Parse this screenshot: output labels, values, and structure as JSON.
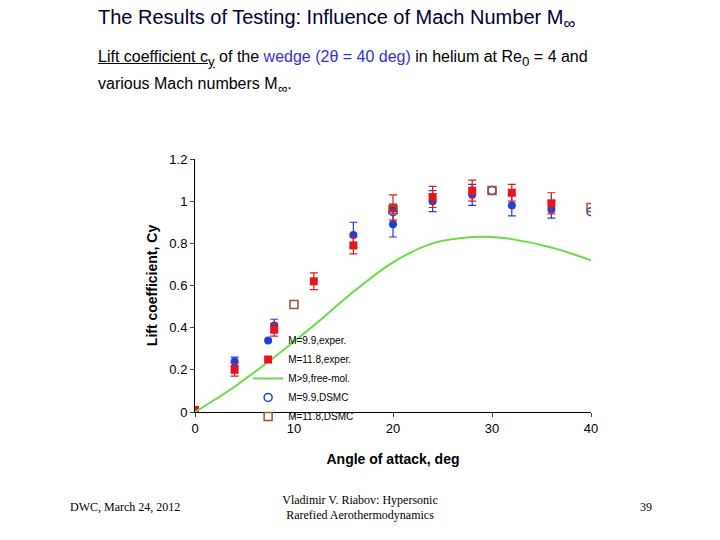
{
  "slide": {
    "title": [
      {
        "text": "The Results of Testing: Influence of Mach Number M"
      },
      {
        "text": "∞",
        "sub": true
      }
    ],
    "subtitle": [
      {
        "text": "Lift coefficient c",
        "underline": true
      },
      {
        "text": "y",
        "sub": true,
        "underline": true
      },
      {
        "text": " of the "
      },
      {
        "text": "wedge (2θ = 40 deg)",
        "color": "#3333cc"
      },
      {
        "text": " in helium at Re"
      },
      {
        "text": "0",
        "sub": true
      },
      {
        "text": " = 4 and various Mach numbers M"
      },
      {
        "text": "∞",
        "sub": true
      },
      {
        "text": "."
      }
    ],
    "footer_left": "DWC, March 24, 2012",
    "footer_center": [
      "Vladimir V. Riabov: Hypersonic",
      "Rarefied Aerothermodynamics"
    ],
    "footer_right": "39"
  },
  "chart_data": {
    "type": "scatter",
    "x_label": "Angle of attack, deg",
    "y_label": "Lift coefficient, Cy",
    "xlim": [
      0,
      40
    ],
    "xticks": [
      0,
      10,
      20,
      30,
      40
    ],
    "ylim": [
      0,
      1.2
    ],
    "yticks": [
      0,
      0.2,
      0.4,
      0.6,
      0.8,
      1,
      1.2
    ],
    "grid": false,
    "legend": "lower right",
    "series": [
      {
        "name": "M=9.9,exper.",
        "type": "scatter",
        "marker": "circle",
        "color": "#1f3fd6",
        "x": [
          4,
          8,
          16,
          20,
          24,
          28,
          32,
          36
        ],
        "values": [
          0.24,
          0.41,
          0.84,
          0.89,
          1.0,
          1.03,
          0.98,
          0.96
        ],
        "errors": [
          0.02,
          0.03,
          0.06,
          0.06,
          0.05,
          0.05,
          0.05,
          0.04
        ]
      },
      {
        "name": "M=11.8,exper.",
        "type": "scatter",
        "marker": "square",
        "color": "#e8141e",
        "x": [
          0,
          4,
          8,
          12,
          16,
          20,
          24,
          28,
          32,
          36
        ],
        "values": [
          0.01,
          0.2,
          0.39,
          0.62,
          0.79,
          0.97,
          1.02,
          1.05,
          1.04,
          0.99
        ],
        "errors": [
          0,
          0.03,
          0.03,
          0.04,
          0.04,
          0.06,
          0.05,
          0.05,
          0.04,
          0.05
        ]
      },
      {
        "name": "M>9,free-mol.",
        "type": "line",
        "line_style": "solid",
        "color": "#66dd44",
        "x": [
          0,
          4,
          8,
          12,
          16,
          20,
          24,
          28,
          30,
          32,
          36,
          40
        ],
        "values": [
          0,
          0.12,
          0.26,
          0.41,
          0.57,
          0.71,
          0.8,
          0.83,
          0.83,
          0.82,
          0.78,
          0.72
        ]
      },
      {
        "name": "M=9.9,DSMC",
        "type": "scatter",
        "marker": "circle-open",
        "color": "#1f3fd6",
        "x": [
          20,
          30,
          40
        ],
        "values": [
          0.95,
          1.05,
          0.95
        ]
      },
      {
        "name": "M=11.8,DSMC",
        "type": "scatter",
        "marker": "square-open",
        "color": "#a0522d",
        "x": [
          10,
          20,
          30,
          40
        ],
        "values": [
          0.51,
          0.96,
          1.05,
          0.97
        ]
      }
    ]
  }
}
